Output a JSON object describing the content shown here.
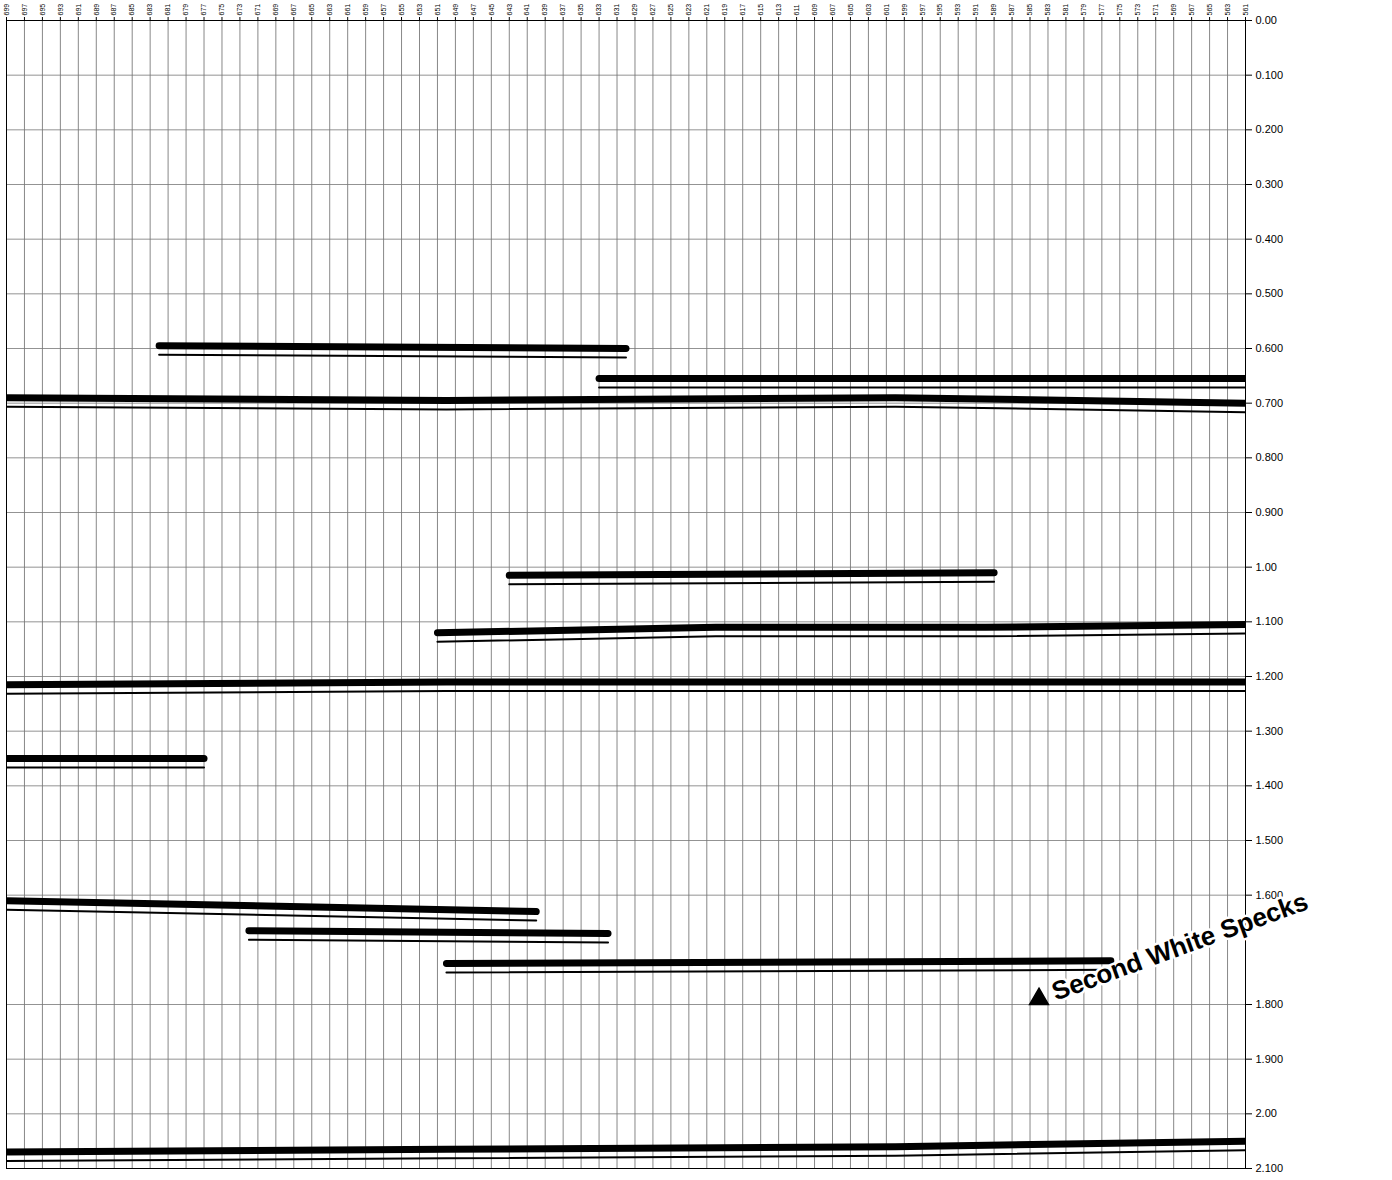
{
  "chart_data": {
    "type": "seismic section",
    "xlim": [
      699,
      561
    ],
    "xticks": [
      699,
      697,
      695,
      693,
      691,
      689,
      687,
      685,
      683,
      681,
      679,
      677,
      675,
      673,
      671,
      669,
      667,
      665,
      663,
      661,
      659,
      657,
      655,
      653,
      651,
      649,
      647,
      645,
      643,
      641,
      639,
      637,
      635,
      633,
      631,
      629,
      627,
      625,
      623,
      621,
      619,
      617,
      615,
      613,
      611,
      609,
      607,
      605,
      603,
      601,
      599,
      597,
      595,
      593,
      591,
      589,
      587,
      585,
      583,
      581,
      579,
      577,
      575,
      573,
      571,
      569,
      567,
      565,
      563,
      561
    ],
    "ylim": [
      0,
      2.1
    ],
    "yticks": [
      {
        "value": 0,
        "label": "0.00"
      },
      {
        "value": 0.1,
        "label": "0.100"
      },
      {
        "value": 0.2,
        "label": "0.200"
      },
      {
        "value": 0.3,
        "label": "0.300"
      },
      {
        "value": 0.4,
        "label": "0.400"
      },
      {
        "value": 0.5,
        "label": "0.500"
      },
      {
        "value": 0.6,
        "label": "0.600"
      },
      {
        "value": 0.7,
        "label": "0.700"
      },
      {
        "value": 0.8,
        "label": "0.800"
      },
      {
        "value": 0.9,
        "label": "0.900"
      },
      {
        "value": 1,
        "label": "1.00"
      },
      {
        "value": 1.1,
        "label": "1.100"
      },
      {
        "value": 1.2,
        "label": "1.200"
      },
      {
        "value": 1.3,
        "label": "1.300"
      },
      {
        "value": 1.4,
        "label": "1.400"
      },
      {
        "value": 1.5,
        "label": "1.500"
      },
      {
        "value": 1.6,
        "label": "1.600"
      },
      {
        "value": 1.8,
        "label": "1.800"
      },
      {
        "value": 1.9,
        "label": "1.900"
      },
      {
        "value": 2,
        "label": "2.00"
      },
      {
        "value": 2.1,
        "label": "2.100"
      }
    ],
    "grid": true,
    "color": "#000000",
    "reflectors": [
      {
        "x": [
          682,
          630
        ],
        "values": [
          0.595,
          0.6
        ]
      },
      {
        "x": [
          633,
          600,
          561
        ],
        "values": [
          0.655,
          0.655,
          0.655
        ]
      },
      {
        "x": [
          699,
          650,
          600,
          561
        ],
        "values": [
          0.69,
          0.695,
          0.69,
          0.7
        ]
      },
      {
        "x": [
          643,
          589
        ],
        "values": [
          1.015,
          1.01
        ]
      },
      {
        "x": [
          651,
          620,
          590,
          561
        ],
        "values": [
          1.12,
          1.11,
          1.11,
          1.105
        ]
      },
      {
        "x": [
          699,
          650,
          600,
          561
        ],
        "values": [
          1.215,
          1.21,
          1.21,
          1.21
        ]
      },
      {
        "x": [
          699,
          677
        ],
        "values": [
          1.35,
          1.35
        ]
      },
      {
        "x": [
          699,
          640
        ],
        "values": [
          1.61,
          1.63
        ]
      },
      {
        "x": [
          672,
          632
        ],
        "values": [
          1.665,
          1.67
        ]
      },
      {
        "x": [
          650,
          576
        ],
        "values": [
          1.725,
          1.72
        ]
      },
      {
        "x": [
          699,
          650,
          600,
          561
        ],
        "values": [
          2.07,
          2.065,
          2.06,
          2.05
        ]
      }
    ],
    "annotations": [
      {
        "text": "Second White Specks",
        "x": 584,
        "y": 1.79
      }
    ]
  }
}
